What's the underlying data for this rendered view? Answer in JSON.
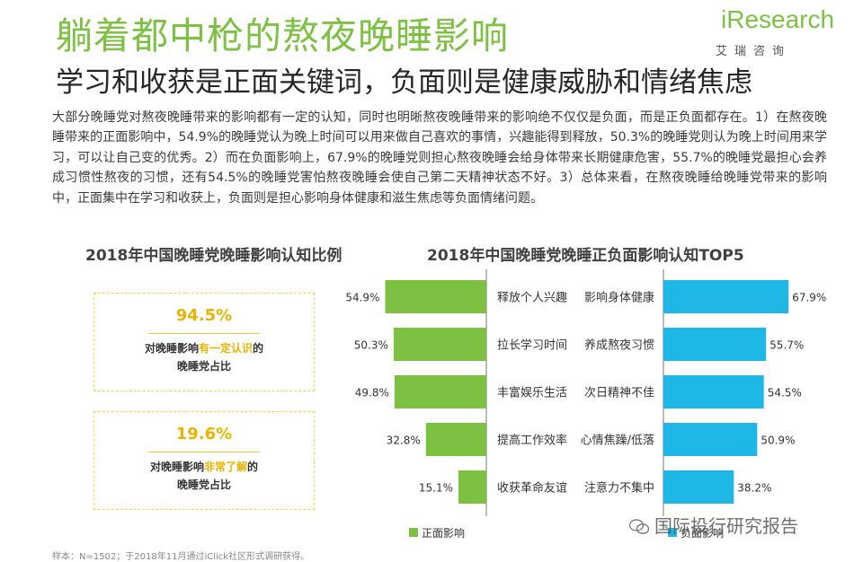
{
  "header": {
    "title": "躺着都中枪的熬夜晚睡影响",
    "subtitle": "学习和收获是正面关键词，负面则是健康威胁和情绪焦虑"
  },
  "logo": {
    "word": "iResearch",
    "sub": "艾瑞咨询"
  },
  "paragraph": "大部分晚睡党对熬夜晚睡带来的影响都有一定的认知，同时也明晰熬夜晚睡带来的影响绝不仅仅是负面，而是正负面都存在。1）在熬夜晚睡带来的正面影响中，54.9%的晚睡党认为晚上时间可以用来做自己喜欢的事情，兴趣能得到释放，50.3%的晚睡党则认为晚上时间用来学习，可以让自己变的优秀。2）而在负面影响上，67.9%的晚睡党则担心熬夜晚睡会给身体带来长期健康危害，55.7%的晚睡党最担心会养成习惯性熬夜的习惯，还有54.5%的晚睡党害怕熬夜晚睡会使自己第二天精神状态不好。3）总体来看，在熬夜晚睡给晚睡党带来的影响中，正面集中在学习和收获上，负面则是担心影响身体健康和滋生焦虑等负面情绪问题。",
  "left_section": {
    "title": "2018年中国晚睡党晚睡影响认知比例",
    "cards": [
      {
        "pct": "94.5%",
        "line1_pre": "对晚睡影响",
        "line1_hl": "有一定认识",
        "line1_post": "的",
        "line2": "晚睡党占比"
      },
      {
        "pct": "19.6%",
        "line1_pre": "对晚睡影响",
        "line1_hl": "非常了解",
        "line1_post": "的",
        "line2": "晚睡党占比"
      }
    ]
  },
  "right_section": {
    "title": "2018年中国晚睡党晚睡正负面影响认知TOP5"
  },
  "chart_data": {
    "type": "bar",
    "title": "2018年中国晚睡党晚睡正负面影响认知TOP5",
    "xlim": [
      0,
      100
    ],
    "series": [
      {
        "name": "正面影响",
        "color": "#7dc142",
        "categories": [
          "释放个人兴趣",
          "拉长学习时间",
          "丰富娱乐生活",
          "提高工作效率",
          "收获革命友谊"
        ],
        "values": [
          54.9,
          50.3,
          49.8,
          32.8,
          15.1
        ],
        "labels": [
          "54.9%",
          "50.3%",
          "49.8%",
          "32.8%",
          "15.1%"
        ]
      },
      {
        "name": "负面影响",
        "color": "#1fb8e6",
        "categories": [
          "影响身体健康",
          "养成熬夜习惯",
          "次日精神不佳",
          "心情焦躁/低落",
          "注意力不集中"
        ],
        "values": [
          67.9,
          55.7,
          54.5,
          50.9,
          38.2
        ],
        "labels": [
          "67.9%",
          "55.7%",
          "54.5%",
          "50.9%",
          "38.2%"
        ]
      }
    ]
  },
  "footnote": "样本：N=1502；于2018年11月通过iClick社区形式调研获得。",
  "watermark": "国际投行研究报告"
}
